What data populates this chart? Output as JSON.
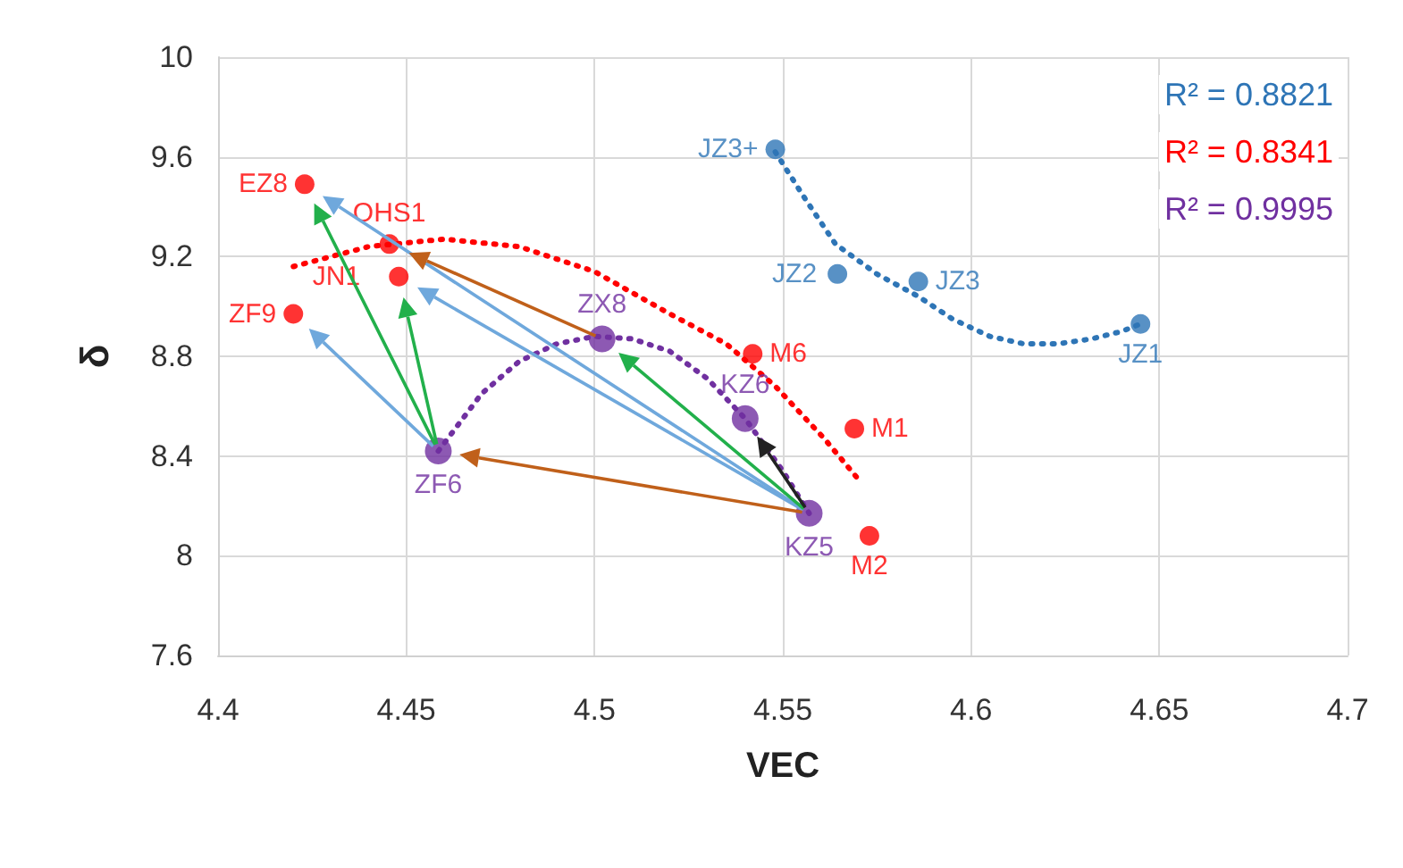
{
  "chart_data": {
    "type": "scatter",
    "xlabel": "VEC",
    "ylabel": "δ",
    "xlim": [
      4.4,
      4.7
    ],
    "xticks": [
      4.4,
      4.45,
      4.5,
      4.55,
      4.6,
      4.65,
      4.7
    ],
    "ylim": [
      7.6,
      10
    ],
    "yticks": [
      7.6,
      8,
      8.4,
      8.8,
      9.2,
      9.6,
      10
    ],
    "grid": true,
    "legend": false,
    "marker": "circle",
    "annotations": [
      "R² = 0.8821",
      "R² = 0.8341",
      "R² = 0.9995"
    ],
    "series": [
      {
        "color": "#2e75b6",
        "x": [
          4.548,
          4.5645,
          4.586,
          4.645
        ],
        "values": [
          9.63,
          9.13,
          9.1,
          8.93
        ],
        "value_labels": [
          "JZ3+",
          "JZ2",
          "JZ3",
          "JZ1"
        ]
      },
      {
        "color": "#ff0000",
        "x": [
          4.423,
          4.4455,
          4.448,
          4.42,
          4.542,
          4.569,
          4.573
        ],
        "values": [
          9.49,
          9.25,
          9.12,
          8.97,
          8.81,
          8.51,
          8.08
        ],
        "value_labels": [
          "EZ8",
          "OHS1",
          "JN1",
          "ZF9",
          "M6",
          "M1",
          "M2"
        ]
      },
      {
        "color": "#7030a0",
        "x": [
          4.4585,
          4.502,
          4.54,
          4.557
        ],
        "values": [
          8.42,
          8.87,
          8.55,
          8.17
        ],
        "value_labels": [
          "ZF6",
          "ZX8",
          "KZ6",
          "KZ5"
        ]
      },
      {
        "type": "line",
        "color": "#2e75b6",
        "line_style": "dotted",
        "marker": "none",
        "x": [
          4.548,
          4.556,
          4.564,
          4.575,
          4.586,
          4.595,
          4.605,
          4.614,
          4.623,
          4.632,
          4.64,
          4.645
        ],
        "values": [
          9.62,
          9.43,
          9.25,
          9.13,
          9.04,
          8.95,
          8.88,
          8.85,
          8.85,
          8.87,
          8.9,
          8.93
        ]
      },
      {
        "type": "line",
        "color": "#ff0000",
        "line_style": "dotted",
        "marker": "none",
        "x": [
          4.42,
          4.44,
          4.46,
          4.48,
          4.5,
          4.52,
          4.535,
          4.548,
          4.561,
          4.571
        ],
        "values": [
          9.16,
          9.24,
          9.27,
          9.24,
          9.14,
          8.97,
          8.85,
          8.68,
          8.47,
          8.29
        ]
      },
      {
        "type": "line",
        "color": "#7030a0",
        "line_style": "dotted",
        "marker": "none",
        "x": [
          4.4585,
          4.47,
          4.48,
          4.49,
          4.5,
          4.51,
          4.52,
          4.53,
          4.54,
          4.55,
          4.557
        ],
        "values": [
          8.42,
          8.65,
          8.78,
          8.85,
          8.88,
          8.87,
          8.82,
          8.71,
          8.55,
          8.34,
          8.17
        ]
      }
    ]
  }
}
